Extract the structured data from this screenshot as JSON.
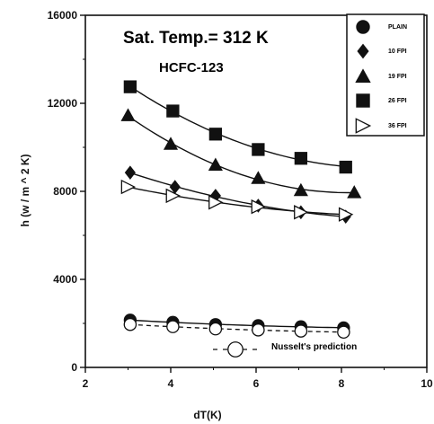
{
  "chart_data": {
    "type": "scatter",
    "title": "Sat. Temp.= 312 K",
    "subtitle": "HCFC-123",
    "xlabel": "dT(K)",
    "ylabel": "h (w / m ^ 2 K)",
    "xlim": [
      2,
      10
    ],
    "ylim": [
      0,
      16000
    ],
    "xticks": [
      2,
      4,
      6,
      8,
      10
    ],
    "yticks": [
      0,
      4000,
      8000,
      12000,
      16000
    ],
    "grid": false,
    "legend_position": "top-right",
    "series": [
      {
        "name": "PLAIN",
        "marker": "circle-filled",
        "color": "#111111",
        "x": [
          3.05,
          4.05,
          5.05,
          6.05,
          7.05,
          8.05
        ],
        "y": [
          2150,
          2050,
          1950,
          1900,
          1850,
          1800
        ]
      },
      {
        "name": "10 FPI",
        "marker": "diamond-filled",
        "color": "#111111",
        "x": [
          3.05,
          4.1,
          5.05,
          6.05,
          7.05,
          8.1
        ],
        "y": [
          8850,
          8200,
          7800,
          7350,
          7050,
          6850
        ]
      },
      {
        "name": "19 FPI",
        "marker": "triangle-filled",
        "color": "#111111",
        "x": [
          3.0,
          4.0,
          5.05,
          6.05,
          7.05,
          8.3
        ],
        "y": [
          11450,
          10150,
          9200,
          8600,
          8050,
          7950
        ]
      },
      {
        "name": "26 FPI",
        "marker": "square-filled",
        "color": "#111111",
        "x": [
          3.05,
          4.05,
          5.05,
          6.05,
          7.05,
          8.1
        ],
        "y": [
          12750,
          11650,
          10600,
          9900,
          9500,
          9100
        ]
      },
      {
        "name": "36 FPI",
        "marker": "triangle-open-right",
        "color": "#111111",
        "x": [
          3.0,
          4.05,
          5.05,
          6.05,
          7.05,
          8.1
        ],
        "y": [
          8200,
          7800,
          7500,
          7300,
          7050,
          6950
        ]
      }
    ],
    "prediction": {
      "name": "Nusselt's prediction",
      "marker": "circle-open",
      "line": "dashed",
      "x": [
        3.05,
        4.05,
        5.05,
        6.05,
        7.05,
        8.05
      ],
      "y": [
        1950,
        1850,
        1750,
        1700,
        1650,
        1600
      ]
    }
  }
}
